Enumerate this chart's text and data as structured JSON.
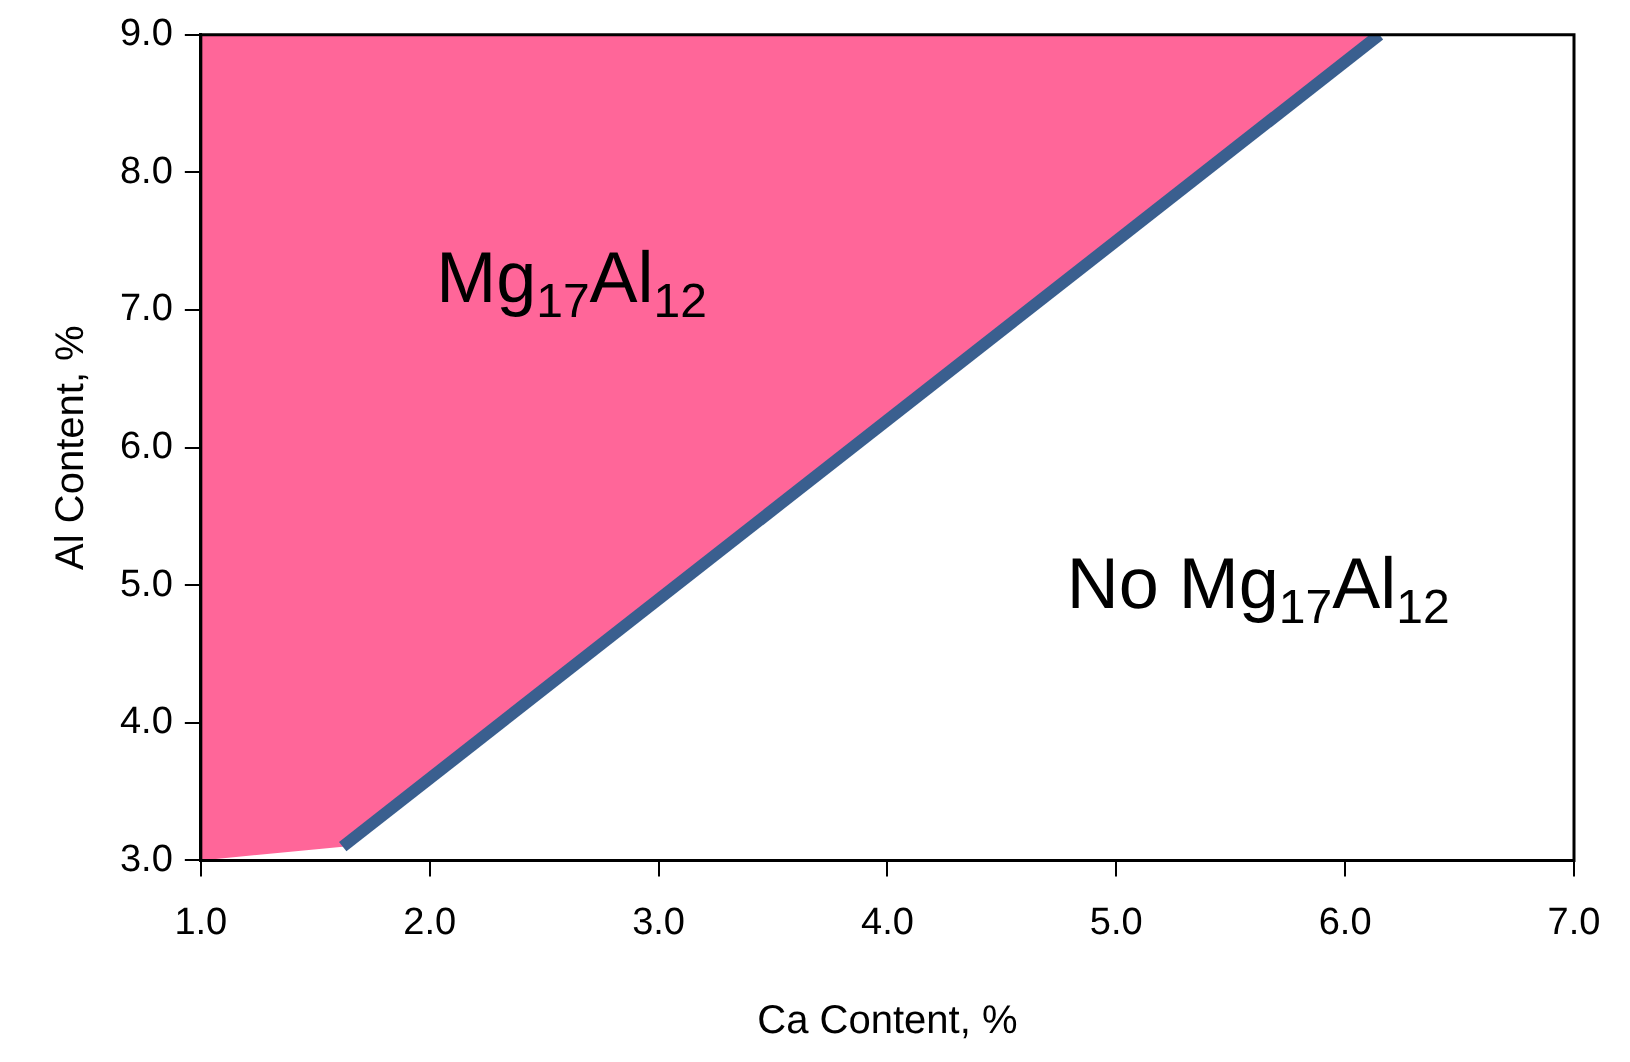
{
  "chart_data": {
    "type": "area",
    "xlabel": "Ca Content, %",
    "ylabel": "Al Content, %",
    "xlim": [
      1.0,
      7.0
    ],
    "xticks": [
      {
        "value": 1,
        "label": "1.0"
      },
      {
        "value": 2,
        "label": "2.0"
      },
      {
        "value": 3,
        "label": "3.0"
      },
      {
        "value": 4,
        "label": "4.0"
      },
      {
        "value": 5,
        "label": "5.0"
      },
      {
        "value": 6,
        "label": "6.0"
      },
      {
        "value": 7,
        "label": "7.0"
      }
    ],
    "ylim": [
      3.0,
      9.0
    ],
    "yticks": [
      {
        "value": 3,
        "label": "3.0"
      },
      {
        "value": 4,
        "label": "4.0"
      },
      {
        "value": 5,
        "label": "5.0"
      },
      {
        "value": 6,
        "label": "6.0"
      },
      {
        "value": 7,
        "label": "7.0"
      },
      {
        "value": 8,
        "label": "8.0"
      },
      {
        "value": 9,
        "label": "9.0"
      }
    ],
    "series": [
      {
        "color": "#ff6699",
        "x": [
          1.0,
          1.0,
          1.62,
          6.15
        ],
        "values": [
          9.0,
          3.0,
          3.1,
          9.0
        ]
      },
      {
        "type": "line",
        "color": "#3a5f8f",
        "x": [
          1.62,
          6.15
        ],
        "values": [
          3.1,
          9.0
        ]
      }
    ],
    "annotations": [
      "Mg$_{17}$Al$_{12}$",
      "No Mg$_{17}$Al$_{12}$"
    ],
    "grid": false,
    "legend": false,
    "marker": "none",
    "line_style": "solid"
  }
}
